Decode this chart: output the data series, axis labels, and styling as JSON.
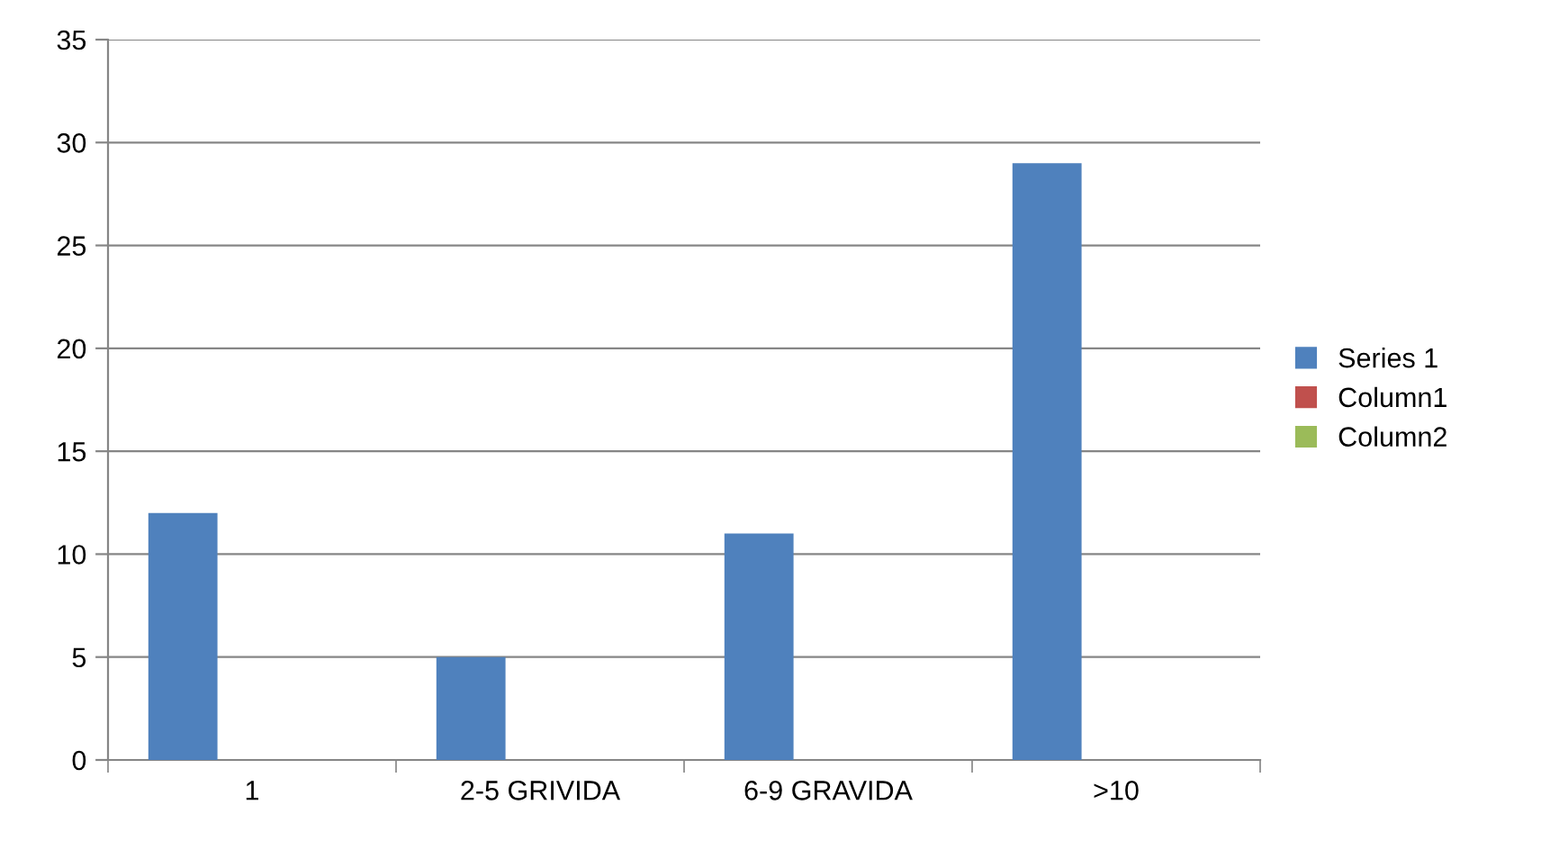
{
  "chart_data": {
    "type": "bar",
    "categories": [
      "1",
      "2-5 GRIVIDA",
      "6-9 GRAVIDA",
      ">10"
    ],
    "series": [
      {
        "name": "Series 1",
        "color": "#4f81bd",
        "values": [
          12,
          5,
          11,
          29
        ]
      },
      {
        "name": "Column1",
        "color": "#c0504d",
        "values": [
          null,
          null,
          null,
          null
        ]
      },
      {
        "name": "Column2",
        "color": "#9bbb59",
        "values": [
          null,
          null,
          null,
          null
        ]
      }
    ],
    "ylim": [
      0,
      35
    ],
    "yticks": [
      0,
      5,
      10,
      15,
      20,
      25,
      30,
      35
    ],
    "grid": "y",
    "legend": "right"
  }
}
